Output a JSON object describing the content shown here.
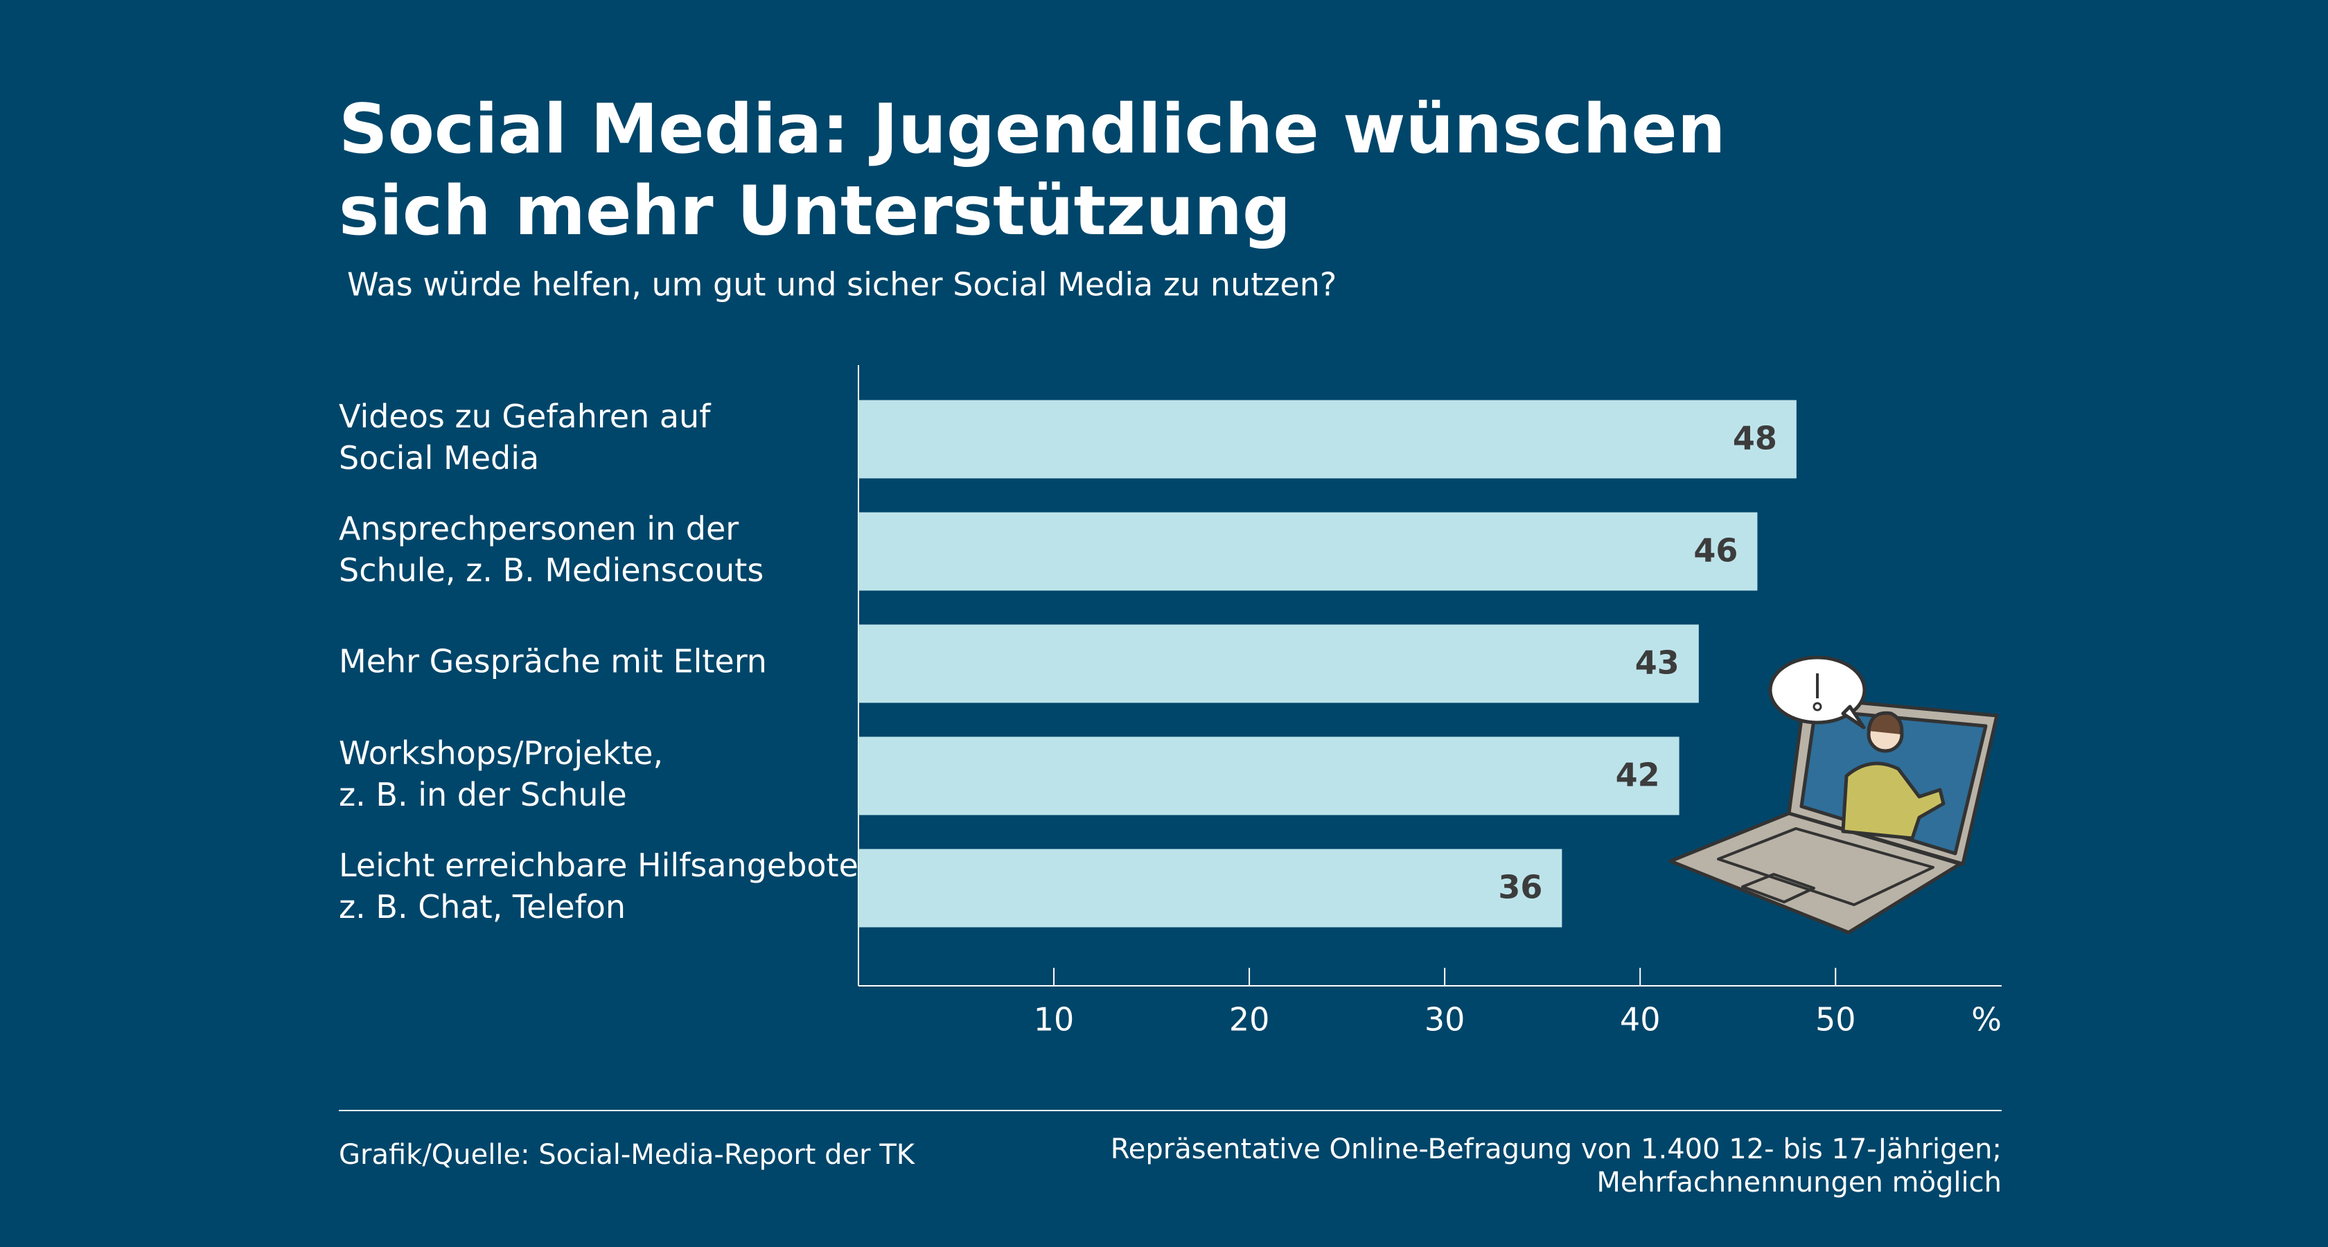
{
  "chart_data": {
    "type": "barh",
    "title": "Social Media: Jugendliche wünschen\nsich mehr Unterstützung",
    "subtitle": "Was würde helfen, um gut und sicher Social Media zu nutzen?",
    "categories": [
      "Videos zu Gefahren auf\nSocial Media",
      "Ansprechpersonen in der\nSchule, z. B. Medienscouts",
      "Mehr Gespräche mit Eltern",
      "Workshops/Projekte,\nz. B. in der Schule",
      "Leicht erreichbare Hilfsangebote,\nz. B. Chat, Telefon"
    ],
    "values": [
      48,
      46,
      43,
      42,
      36
    ],
    "color": "#bde3ea",
    "xlim": [
      0,
      58.5
    ],
    "xticks": [
      10,
      20,
      30,
      40,
      50
    ],
    "x_label": "%",
    "source": "Grafik/Quelle: Social-Media-Report der TK",
    "note": "Repräsentative Online-Befragung von 1.400 12- bis 17-Jährigen;\nMehrfachnennungen möglich"
  }
}
